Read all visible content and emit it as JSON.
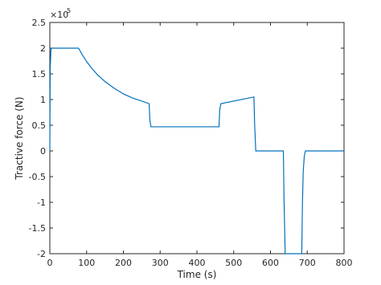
{
  "chart_data": {
    "type": "line",
    "xlabel": "Time (s)",
    "ylabel": "Tractive force (N)",
    "y_multiplier": {
      "base": "×10",
      "exponent": "5"
    },
    "x": [
      0,
      1,
      3,
      5,
      75,
      78,
      90,
      100,
      115,
      130,
      150,
      175,
      200,
      225,
      250,
      270,
      272,
      275,
      460,
      462,
      465,
      555,
      557,
      560,
      635,
      637,
      640,
      685,
      687,
      689,
      692,
      695,
      800
    ],
    "values": [
      0,
      1.6,
      1.97,
      2.0,
      2.0,
      2.0,
      1.85,
      1.74,
      1.6,
      1.48,
      1.35,
      1.22,
      1.11,
      1.03,
      0.97,
      0.92,
      0.6,
      0.47,
      0.47,
      0.8,
      0.92,
      1.05,
      0.5,
      0.0,
      0.0,
      -1.0,
      -2.0,
      -2.0,
      -1.0,
      -0.4,
      -0.1,
      0.0,
      0.0
    ],
    "color": "#0072bd",
    "xlim": [
      0,
      800
    ],
    "xticks": [
      0,
      100,
      200,
      300,
      400,
      500,
      600,
      700,
      800
    ],
    "ylim": [
      -2,
      2.5
    ],
    "yticks": [
      -2,
      -1.5,
      -1,
      -0.5,
      0,
      0.5,
      1,
      1.5,
      2,
      2.5
    ],
    "grid": false
  }
}
